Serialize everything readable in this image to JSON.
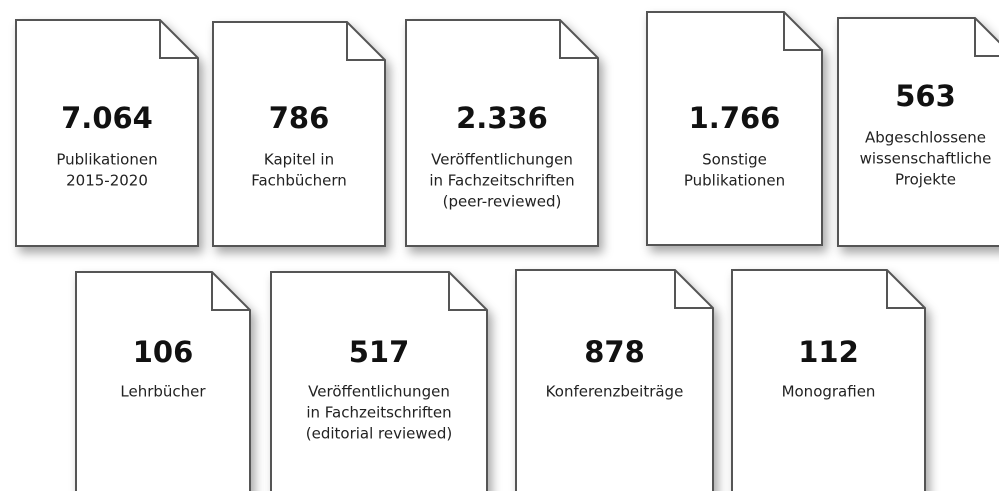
{
  "cards": [
    {
      "number": "7.064",
      "label": [
        "Publikationen",
        "2015-2020"
      ]
    },
    {
      "number": "786",
      "label": [
        "Kapitel in",
        "Fachbüchern"
      ]
    },
    {
      "number": "2.336",
      "label": [
        "Veröffentlichungen",
        "in Fachzeitschriften",
        "(peer-reviewed)"
      ]
    },
    {
      "number": "1.766",
      "label": [
        "Sonstige",
        "Publikationen"
      ]
    },
    {
      "number": "563",
      "label": [
        "Abgeschlossene",
        "wissenschaftliche",
        "Projekte"
      ]
    },
    {
      "number": "106",
      "label": [
        "Lehrbücher"
      ]
    },
    {
      "number": "517",
      "label": [
        "Veröffentlichungen",
        "in Fachzeitschriften",
        "(editorial reviewed)"
      ]
    },
    {
      "number": "878",
      "label": [
        "Konferenzbeiträge"
      ]
    },
    {
      "number": "112",
      "label": [
        "Monografien"
      ]
    }
  ]
}
